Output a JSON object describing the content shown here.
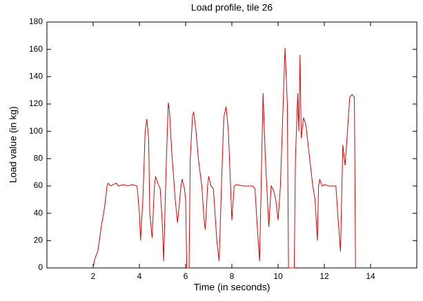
{
  "chart_data": {
    "type": "line",
    "title": "Load profile, tile 26",
    "x_label": "Time (in seconds)",
    "y_label": "Load value (in kg)",
    "xlim": [
      0,
      16
    ],
    "xticks": [
      2,
      4,
      6,
      8,
      10,
      12,
      14
    ],
    "ylim": [
      0,
      180
    ],
    "yticks": [
      0,
      20,
      40,
      60,
      80,
      100,
      120,
      140,
      160,
      180
    ],
    "series": [
      {
        "color": "#e00000",
        "x": [
          2.0,
          2.05,
          2.1,
          2.2,
          2.35,
          2.5,
          2.6,
          2.65,
          2.75,
          2.85,
          3.0,
          3.1,
          3.3,
          3.5,
          3.7,
          3.9,
          4.0,
          4.05,
          4.15,
          4.25,
          4.32,
          4.4,
          4.45,
          4.55,
          4.65,
          4.7,
          4.8,
          4.9,
          5.0,
          5.05,
          5.15,
          5.25,
          5.3,
          5.4,
          5.55,
          5.65,
          5.8,
          5.85,
          5.95,
          6.0,
          6.05,
          6.15,
          6.2,
          6.3,
          6.35,
          6.45,
          6.55,
          6.7,
          6.8,
          6.85,
          6.95,
          7.0,
          7.1,
          7.2,
          7.35,
          7.45,
          7.55,
          7.65,
          7.75,
          7.85,
          8.0,
          8.1,
          8.2,
          8.5,
          8.9,
          9.0,
          9.1,
          9.2,
          9.35,
          9.45,
          9.6,
          9.7,
          9.8,
          9.9,
          10.0,
          10.1,
          10.3,
          10.4,
          10.45,
          10.7,
          10.75,
          10.85,
          10.9,
          10.95,
          11.0,
          11.1,
          11.2,
          11.3,
          11.4,
          11.5,
          11.6,
          11.7,
          11.75,
          11.8,
          11.9,
          12.0,
          12.2,
          12.5,
          12.6,
          12.7,
          12.8,
          12.9,
          13.0,
          13.1,
          13.2,
          13.3,
          13.35
        ],
        "values": [
          0,
          5,
          8,
          12,
          30,
          45,
          60,
          62,
          60,
          61,
          62,
          60,
          61,
          60,
          61,
          60,
          40,
          20,
          50,
          100,
          109,
          95,
          40,
          22,
          60,
          67,
          62,
          58,
          30,
          5,
          70,
          121,
          115,
          85,
          50,
          33,
          60,
          65,
          58,
          50,
          0,
          0,
          80,
          112,
          114,
          100,
          80,
          60,
          35,
          28,
          60,
          67,
          60,
          58,
          20,
          5,
          60,
          110,
          118,
          100,
          35,
          60,
          61,
          60,
          60,
          58,
          30,
          5,
          128,
          80,
          30,
          60,
          57,
          50,
          35,
          60,
          161,
          120,
          0,
          0,
          80,
          128,
          100,
          156,
          95,
          110,
          105,
          90,
          75,
          60,
          50,
          20,
          60,
          65,
          60,
          61,
          60,
          60,
          35,
          12,
          90,
          75,
          100,
          125,
          127,
          125,
          0
        ]
      }
    ]
  }
}
